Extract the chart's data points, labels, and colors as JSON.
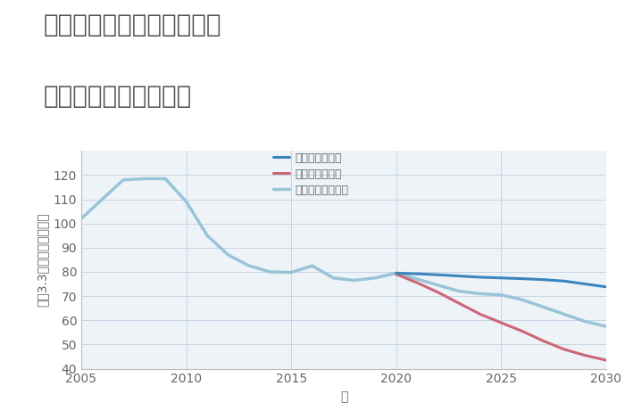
{
  "title_line1": "兵庫県豊岡市但東町南尾の",
  "title_line2": "中古戸建ての価格推移",
  "xlabel": "年",
  "ylabel": "坪（3.3㎡）単価（万円）",
  "background_color": "#ffffff",
  "plot_bg_color": "#eef3f8",
  "grid_color": "#c5d5e5",
  "title_color": "#555555",
  "tick_color": "#666666",
  "ylim": [
    40,
    130
  ],
  "xlim": [
    2005,
    2030
  ],
  "yticks": [
    40,
    50,
    60,
    70,
    80,
    90,
    100,
    110,
    120
  ],
  "xticks": [
    2005,
    2010,
    2015,
    2020,
    2025,
    2030
  ],
  "good_scenario": {
    "label": "グッドシナリオ",
    "color": "#3a85bf",
    "linewidth": 2.2,
    "x": [
      2020,
      2021,
      2022,
      2023,
      2024,
      2025,
      2026,
      2027,
      2028,
      2029,
      2030
    ],
    "y": [
      79.5,
      79.2,
      78.8,
      78.3,
      77.8,
      77.5,
      77.2,
      76.8,
      76.2,
      75.0,
      73.8
    ]
  },
  "bad_scenario": {
    "label": "バッドシナリオ",
    "color": "#cc6677",
    "linewidth": 2.2,
    "x": [
      2020,
      2021,
      2022,
      2023,
      2024,
      2025,
      2026,
      2027,
      2028,
      2029,
      2030
    ],
    "y": [
      79.0,
      75.5,
      71.5,
      67.0,
      62.5,
      59.0,
      55.5,
      51.5,
      48.0,
      45.5,
      43.5
    ]
  },
  "normal_scenario": {
    "label": "ノーマルシナリオ",
    "color": "#99c4d8",
    "linewidth": 2.5,
    "x": [
      2005,
      2006,
      2007,
      2008,
      2009,
      2010,
      2011,
      2012,
      2013,
      2014,
      2015,
      2016,
      2017,
      2018,
      2019,
      2020,
      2021,
      2022,
      2023,
      2024,
      2025,
      2026,
      2027,
      2028,
      2029,
      2030
    ],
    "y": [
      102.0,
      110.0,
      118.0,
      118.5,
      118.5,
      109.0,
      95.0,
      87.0,
      82.5,
      80.0,
      79.8,
      82.5,
      77.5,
      76.5,
      77.5,
      79.5,
      77.0,
      74.5,
      72.0,
      71.0,
      70.5,
      68.5,
      65.5,
      62.5,
      59.5,
      57.5
    ]
  },
  "title_fontsize": 20,
  "axis_label_fontsize": 10,
  "tick_fontsize": 10,
  "legend_fontsize": 9
}
